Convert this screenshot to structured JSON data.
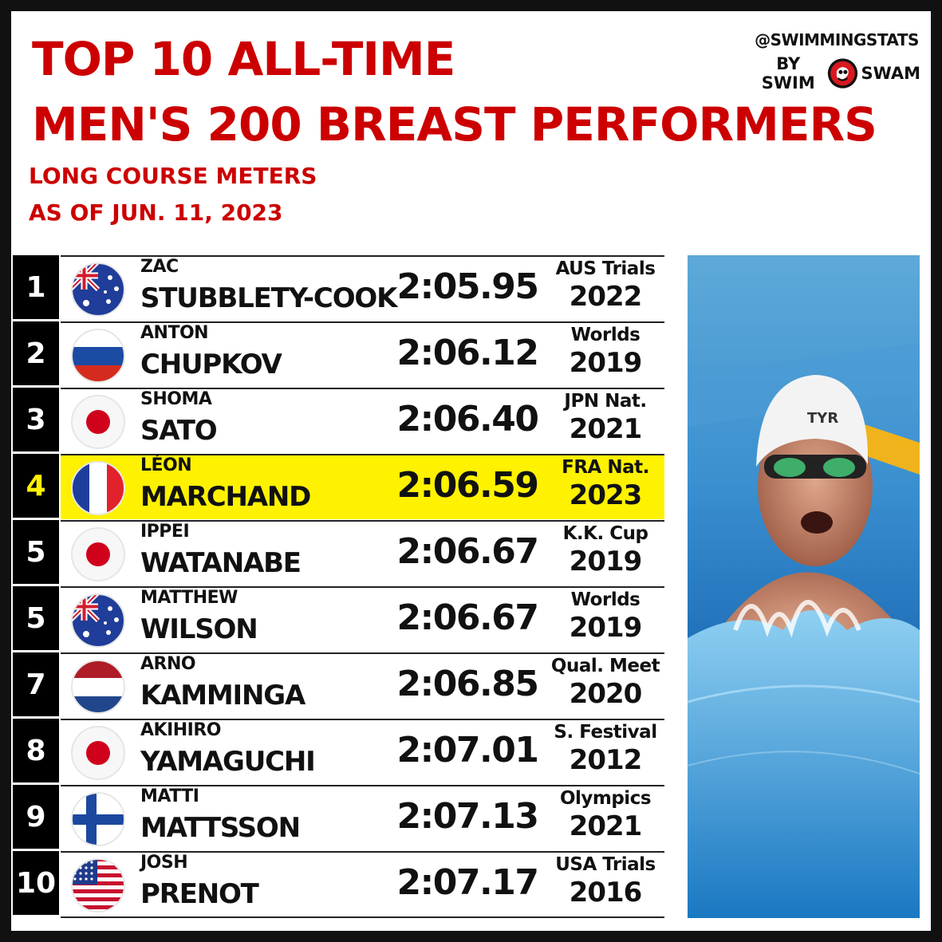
{
  "header": {
    "title_line1": "TOP 10 ALL-TIME",
    "title_line2": "MEN'S 200 BREAST PERFORMERS",
    "subtitle_line1": "LONG COURSE METERS",
    "subtitle_line2": "AS OF JUN. 11, 2023"
  },
  "brand": {
    "handle": "@SWIMMINGSTATS",
    "by": "BY SWIM",
    "swam": "SWAM",
    "logo_icon": "swimswam-logo"
  },
  "colors": {
    "title_red": "#cc0000",
    "highlight_yellow": "#fff200",
    "rank_bg": "#000000"
  },
  "rows": [
    {
      "rank": "1",
      "first": "ZAC",
      "last": "STUBBLETY-COOK",
      "time": "2:05.95",
      "meet": "AUS Trials",
      "year": "2022",
      "flag": "australia-flag-icon"
    },
    {
      "rank": "2",
      "first": "ANTON",
      "last": "CHUPKOV",
      "time": "2:06.12",
      "meet": "Worlds",
      "year": "2019",
      "flag": "russia-flag-icon"
    },
    {
      "rank": "3",
      "first": "SHOMA",
      "last": "SATO",
      "time": "2:06.40",
      "meet": "JPN Nat.",
      "year": "2021",
      "flag": "japan-flag-icon"
    },
    {
      "rank": "4",
      "first": "LÉON",
      "last": "MARCHAND",
      "time": "2:06.59",
      "meet": "FRA Nat.",
      "year": "2023",
      "flag": "france-flag-icon",
      "highlight": true
    },
    {
      "rank": "5",
      "first": "IPPEI",
      "last": "WATANABE",
      "time": "2:06.67",
      "meet": "K.K. Cup",
      "year": "2019",
      "flag": "japan-flag-icon"
    },
    {
      "rank": "5",
      "first": "MATTHEW",
      "last": "WILSON",
      "time": "2:06.67",
      "meet": "Worlds",
      "year": "2019",
      "flag": "australia-flag-icon"
    },
    {
      "rank": "7",
      "first": "ARNO",
      "last": "KAMMINGA",
      "time": "2:06.85",
      "meet": "Qual. Meet",
      "year": "2020",
      "flag": "netherlands-flag-icon"
    },
    {
      "rank": "8",
      "first": "AKIHIRO",
      "last": "YAMAGUCHI",
      "time": "2:07.01",
      "meet": "S. Festival",
      "year": "2012",
      "flag": "japan-flag-icon"
    },
    {
      "rank": "9",
      "first": "MATTI",
      "last": "MATTSSON",
      "time": "2:07.13",
      "meet": "Olympics",
      "year": "2021",
      "flag": "finland-flag-icon"
    },
    {
      "rank": "10",
      "first": "JOSH",
      "last": "PRENOT",
      "time": "2:07.17",
      "meet": "USA Trials",
      "year": "2016",
      "flag": "usa-flag-icon"
    }
  ],
  "photo": {
    "icon": "swimmer-breaststroke-photo",
    "cap_text": "TYR"
  }
}
